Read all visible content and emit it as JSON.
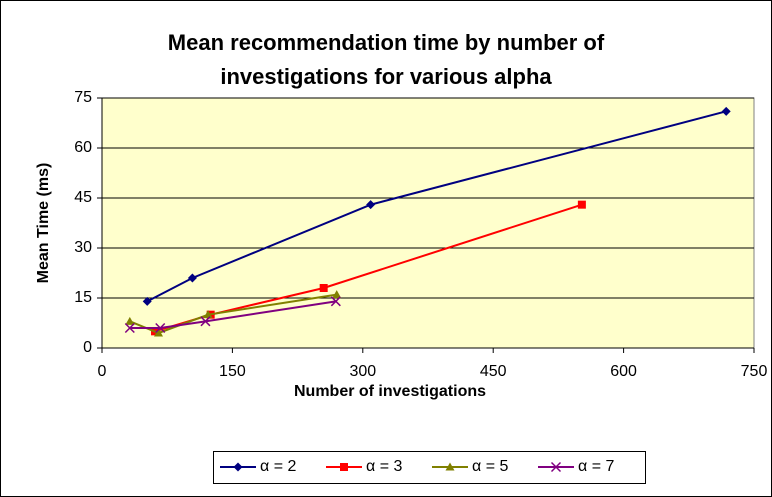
{
  "chart_data": {
    "type": "line",
    "title": [
      "Mean recommendation time by number of",
      "investigations for various alpha"
    ],
    "xlabel": "Number of investigations",
    "ylabel": "Mean Time (ms)",
    "xlim": [
      0,
      750
    ],
    "xticks": [
      0,
      150,
      300,
      450,
      600,
      750
    ],
    "ylim": [
      0,
      75
    ],
    "yticks": [
      0,
      15,
      30,
      45,
      60,
      75
    ],
    "grid": true,
    "legend": "bottom",
    "plot_background": "#ffffcc",
    "series": [
      {
        "name": "α = 2",
        "color": "#000080",
        "marker": "diamond",
        "x": [
          52,
          104,
          309,
          718
        ],
        "values": [
          14,
          21,
          43,
          71
        ]
      },
      {
        "name": "α = 3",
        "color": "#ff0000",
        "marker": "square",
        "x": [
          61,
          125,
          255,
          552
        ],
        "values": [
          5,
          10,
          18,
          43
        ]
      },
      {
        "name": "α = 5",
        "color": "#808000",
        "marker": "triangle",
        "x": [
          32,
          65,
          122,
          270
        ],
        "values": [
          8,
          4.5,
          10,
          16
        ]
      },
      {
        "name": "α = 7",
        "color": "#800080",
        "marker": "x",
        "x": [
          32,
          67,
          119,
          269
        ],
        "values": [
          6,
          6,
          8,
          14
        ]
      }
    ]
  }
}
